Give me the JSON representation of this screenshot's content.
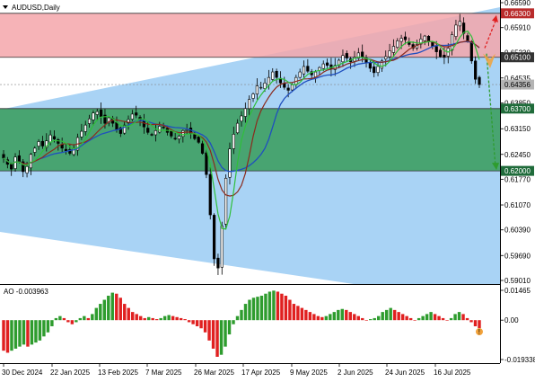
{
  "header": {
    "symbol_label": "AUDUSD,Daily"
  },
  "ao": {
    "label": "AO -0.003963",
    "y_ticks": [
      "0.01465",
      "0.00",
      "-0.019338"
    ]
  },
  "price_axis": {
    "ticks": [
      "0.66590",
      "0.65910",
      "0.65230",
      "0.64535",
      "0.63850",
      "0.63150",
      "0.62450",
      "0.61770",
      "0.61070",
      "0.60390",
      "0.59690",
      "0.59010"
    ],
    "highlighted": [
      {
        "label": "0.66300",
        "value": 0.663,
        "bg": "#b92b2b",
        "fg": "#ffffff"
      },
      {
        "label": "0.65100",
        "value": 0.651,
        "bg": "#333333",
        "fg": "#ffffff"
      },
      {
        "label": "0.64356",
        "value": 0.64356,
        "bg": "#b4b4b4",
        "fg": "#000000"
      },
      {
        "label": "0.63700",
        "value": 0.637,
        "bg": "#1f6b3a",
        "fg": "#ffffff"
      },
      {
        "label": "0.62000",
        "value": 0.62,
        "bg": "#1f6b3a",
        "fg": "#ffffff"
      }
    ]
  },
  "time_axis": {
    "labels": [
      "30 Dec 2024",
      "22 Jan 2025",
      "13 Feb 2025",
      "7 Mar 2025",
      "26 Mar 2025",
      "17 Apr 2025",
      "9 May 2025",
      "2 Jun 2025",
      "24 Jun 2025",
      "16 Jul 2025"
    ]
  },
  "colors": {
    "resistance_zone": "#f4a6aa",
    "support_zone": "#3d9e63",
    "channel": "#a9d3f5",
    "ma_fast": "#2fbf3a",
    "ma_mid": "#8b2b1e",
    "ma_slow": "#1f4fbf",
    "ao_up": "#2e9c2e",
    "ao_down": "#e02020",
    "arrow_up": "#e02020",
    "arrow_down": "#2e9c2e"
  },
  "chart_data": [
    {
      "type": "candlestick",
      "title": "AUDUSD,Daily",
      "ylim": [
        0.5901,
        0.6659
      ],
      "x_labels": [
        "30 Dec 2024",
        "22 Jan 2025",
        "13 Feb 2025",
        "7 Mar 2025",
        "26 Mar 2025",
        "17 Apr 2025",
        "9 May 2025",
        "2 Jun 2025",
        "24 Jun 2025",
        "16 Jul 2025"
      ],
      "close_path": [
        0.6235,
        0.6218,
        0.6205,
        0.6238,
        0.6225,
        0.6198,
        0.6212,
        0.6245,
        0.6262,
        0.628,
        0.6268,
        0.6282,
        0.6298,
        0.6287,
        0.6275,
        0.6262,
        0.6255,
        0.6248,
        0.6262,
        0.6291,
        0.6308,
        0.6325,
        0.6342,
        0.6358,
        0.6362,
        0.6348,
        0.633,
        0.6345,
        0.633,
        0.6312,
        0.6302,
        0.6325,
        0.634,
        0.6355,
        0.6352,
        0.6338,
        0.632,
        0.6305,
        0.6298,
        0.631,
        0.6322,
        0.6318,
        0.6305,
        0.6295,
        0.6288,
        0.6295,
        0.631,
        0.6312,
        0.6302,
        0.6288,
        0.6278,
        0.6248,
        0.619,
        0.608,
        0.596,
        0.5935,
        0.605,
        0.618,
        0.626,
        0.63,
        0.633,
        0.635,
        0.637,
        0.6395,
        0.641,
        0.6432,
        0.6428,
        0.644,
        0.6455,
        0.647,
        0.6455,
        0.644,
        0.6428,
        0.642,
        0.6435,
        0.6455,
        0.647,
        0.6485,
        0.6472,
        0.6462,
        0.647,
        0.6482,
        0.6492,
        0.6488,
        0.6478,
        0.6488,
        0.6502,
        0.6515,
        0.6508,
        0.6498,
        0.651,
        0.6522,
        0.651,
        0.6495,
        0.648,
        0.6468,
        0.6485,
        0.65,
        0.6512,
        0.6528,
        0.654,
        0.6555,
        0.6562,
        0.6558,
        0.6545,
        0.6535,
        0.6545,
        0.656,
        0.6568,
        0.6555,
        0.654,
        0.6525,
        0.6512,
        0.651,
        0.6535,
        0.6572,
        0.6598,
        0.6608,
        0.6575,
        0.6555,
        0.65,
        0.645,
        0.64356
      ],
      "zones": [
        {
          "name": "resistance",
          "from": 0.651,
          "to": 0.663
        },
        {
          "name": "support",
          "from": 0.62,
          "to": 0.637
        }
      ],
      "moving_averages": [
        "ma_fast",
        "ma_mid",
        "ma_slow"
      ],
      "forecast_targets": [
        0.663,
        0.62
      ]
    },
    {
      "type": "bar",
      "title": "AO -0.003963",
      "ylim": [
        -0.019338,
        0.01465
      ],
      "values": [
        -0.015,
        -0.016,
        -0.015,
        -0.014,
        -0.013,
        -0.012,
        -0.013,
        -0.012,
        -0.011,
        -0.01,
        -0.008,
        -0.006,
        -0.003,
        0.001,
        0.002,
        0.001,
        -0.001,
        -0.002,
        -0.001,
        0.001,
        0.002,
        0.001,
        0.003,
        0.006,
        0.008,
        0.01,
        0.012,
        0.0135,
        0.013,
        0.011,
        0.008,
        0.006,
        0.004,
        0.003,
        0.002,
        0.001,
        0.0015,
        0.001,
        0.0005,
        0.001,
        0.002,
        0.0025,
        0.002,
        0.0015,
        0.001,
        0.0005,
        -0.001,
        -0.002,
        -0.003,
        -0.004,
        -0.006,
        -0.01,
        -0.014,
        -0.018,
        -0.017,
        -0.013,
        -0.007,
        -0.002,
        0.002,
        0.005,
        0.008,
        0.01,
        0.011,
        0.0115,
        0.012,
        0.013,
        0.014,
        0.0145,
        0.014,
        0.013,
        0.012,
        0.01,
        0.008,
        0.007,
        0.006,
        0.005,
        0.004,
        0.003,
        0.002,
        0.0015,
        0.002,
        0.003,
        0.004,
        0.005,
        0.0055,
        0.005,
        0.004,
        0.003,
        0.002,
        0.001,
        0.0,
        0.0005,
        0.001,
        0.002,
        0.004,
        0.005,
        0.006,
        0.005,
        0.004,
        0.003,
        0.002,
        0.001,
        0.0,
        0.001,
        0.002,
        0.003,
        0.004,
        0.003,
        0.002,
        0.001,
        0.0,
        0.001,
        0.003,
        0.004,
        0.003,
        0.001,
        -0.001,
        -0.003,
        -0.0039
      ]
    }
  ]
}
